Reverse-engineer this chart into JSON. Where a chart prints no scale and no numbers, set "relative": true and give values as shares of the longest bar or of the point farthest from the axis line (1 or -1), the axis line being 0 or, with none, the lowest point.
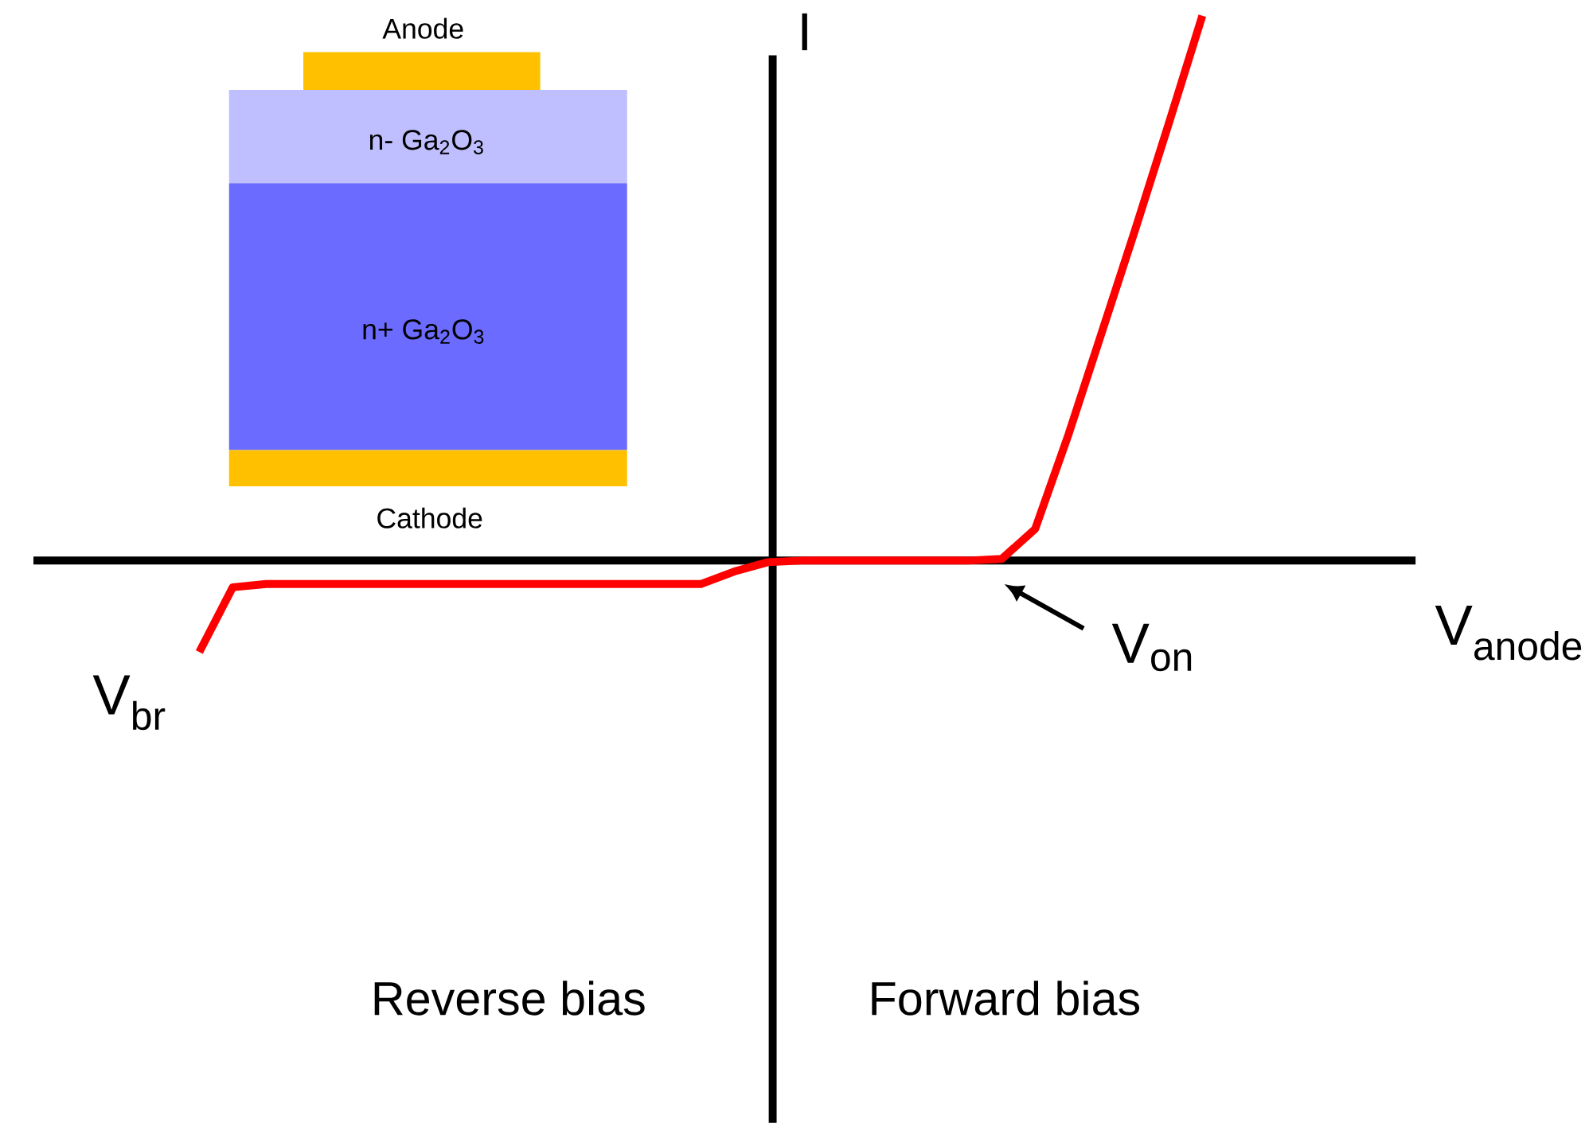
{
  "chart_data": {
    "type": "line",
    "relative": true,
    "xlabel": "V$_{anode}$",
    "ylabel": "I",
    "categories": [
      null,
      null,
      null,
      null,
      null,
      null,
      null,
      null,
      null,
      null,
      null,
      null,
      null,
      null,
      null,
      null,
      null,
      null,
      null,
      null,
      null,
      null,
      null,
      null,
      null,
      null,
      null,
      null,
      null,
      null,
      null
    ],
    "series": [
      {
        "color": "#ff0000",
        "values": [
          -0.168,
          -0.049,
          -0.043,
          -0.043,
          -0.043,
          -0.043,
          -0.043,
          -0.043,
          -0.043,
          -0.043,
          -0.043,
          -0.043,
          -0.043,
          -0.043,
          -0.043,
          -0.043,
          -0.02,
          -0.003,
          0,
          0,
          0,
          0,
          0,
          0,
          0.003,
          0.058,
          0.232,
          0.42,
          0.609,
          0.803,
          1
        ]
      }
    ],
    "annotations": [
      "V$_{br}$",
      "V$_{on}$",
      "Reverse bias",
      "Forward bias",
      "Anode",
      "n- Ga$_{2}$O$_{3}$",
      "n+ Ga$_{2}$O$_{3}$",
      "Cathode"
    ]
  }
}
